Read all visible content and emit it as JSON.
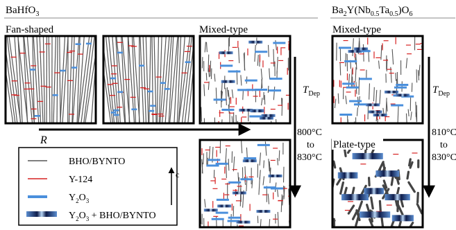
{
  "header_left": "BaHfO",
  "header_left_sub": "3",
  "header_right_base": "Ba",
  "header_right_s1": "2",
  "header_right_y": "Y(Nb",
  "header_right_s2": "0.5",
  "header_right_ta": "Ta",
  "header_right_s3": "0.5",
  "header_right_o": ")O",
  "header_right_s4": "6",
  "label_fan": "Fan-shaped",
  "label_mixed": "Mixed-type",
  "label_mixed_right": "Mixed-type",
  "label_plate": "Plate-type",
  "rate_label": "R",
  "tdep_main": "T",
  "tdep_sub": "Dep",
  "temp_left": [
    "800°C",
    "to",
    "830°C"
  ],
  "temp_right": [
    "810°C",
    "to",
    "830°C"
  ],
  "c_axis_label": "c",
  "legend": {
    "items": [
      {
        "label": "BHO/BYNTO",
        "style": "thin-gray-line",
        "color": "#555555"
      },
      {
        "label": "Y-124",
        "style": "thin-red-line",
        "color": "#d62020"
      },
      {
        "label_main": "Y",
        "label_sub": "2",
        "label_rest": "O",
        "label_sub2": "3",
        "style": "blue-bar",
        "color": "#4a8fdc"
      },
      {
        "label_main": "Y",
        "label_sub": "2",
        "label_rest": "O",
        "label_sub2": "3",
        "label_tail": " + BHO/BYNTO",
        "style": "gradient-bar",
        "color": "#1a2a66"
      }
    ]
  }
}
